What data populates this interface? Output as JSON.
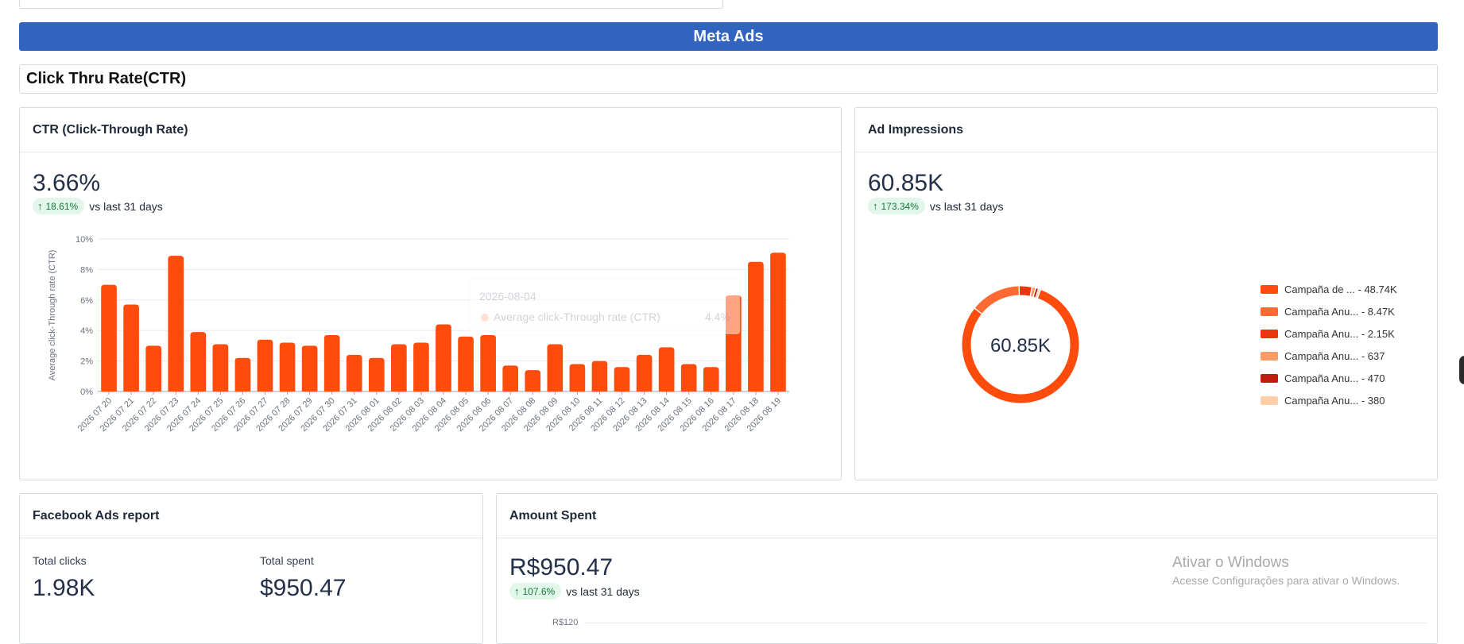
{
  "banner": {
    "title": "Meta Ads"
  },
  "section": {
    "title": "Click Thru Rate(CTR)"
  },
  "ctr_card": {
    "title": "CTR (Click-Through Rate)",
    "value": "3.66%",
    "change": "18.61%",
    "compare": "vs last 31 days",
    "tooltip": {
      "date": "2026-08-04",
      "label": "Average click-Through rate (CTR)",
      "value": "4.4%"
    }
  },
  "impressions_card": {
    "title": "Ad Impressions",
    "value": "60.85K",
    "change": "173.34%",
    "compare": "vs last 31 days",
    "center_label": "60.85K",
    "legend": [
      {
        "label": "Campaña de ... - 48.74K",
        "color": "#ff4b0b"
      },
      {
        "label": "Campaña Anu... - 8.47K",
        "color": "#ff6a33"
      },
      {
        "label": "Campaña Anu... - 2.15K",
        "color": "#e8360f"
      },
      {
        "label": "Campaña Anu... - 637",
        "color": "#ff9a66"
      },
      {
        "label": "Campaña Anu... - 470",
        "color": "#c21a0e"
      },
      {
        "label": "Campaña Anu... - 380",
        "color": "#ffd0a8"
      }
    ]
  },
  "fb_card": {
    "title": "Facebook Ads report",
    "clicks_label": "Total clicks",
    "clicks_value": "1.98K",
    "spent_label": "Total spent",
    "spent_value": "$950.47"
  },
  "amount_card": {
    "title": "Amount Spent",
    "value": "R$950.47",
    "change": "107.6%",
    "compare": "vs last 31 days",
    "axis_top": "R$120"
  },
  "windows_watermark": {
    "line1": "Ativar o Windows",
    "line2": "Acesse Configurações para ativar o Windows."
  },
  "chart_data": [
    {
      "type": "bar",
      "ylabel": "Average click-Through rate (CTR)",
      "ylim": [
        0,
        10
      ],
      "yticks": [
        "0%",
        "2%",
        "4%",
        "6%",
        "8%",
        "10%"
      ],
      "grid": true,
      "color": "#ff4b0b",
      "categories": [
        "2026 07 20",
        "2026 07 21",
        "2026 07 22",
        "2026 07 23",
        "2026 07 24",
        "2026 07 25",
        "2026 07 26",
        "2026 07 27",
        "2026 07 28",
        "2026 07 29",
        "2026 07 30",
        "2026 07 31",
        "2026 08 01",
        "2026 08 02",
        "2026 08 03",
        "2026 08 04",
        "2026 08 05",
        "2026 08 06",
        "2026 08 07",
        "2026 08 08",
        "2026 08 09",
        "2026 08 10",
        "2026 08 11",
        "2026 08 12",
        "2026 08 13",
        "2026 08 14",
        "2026 08 15",
        "2026 08 16",
        "2026 08 17",
        "2026 08 18",
        "2026 08 19"
      ],
      "values": [
        7.0,
        5.7,
        3.0,
        8.9,
        3.9,
        3.1,
        2.2,
        3.4,
        3.2,
        3.0,
        3.7,
        2.4,
        2.2,
        3.1,
        3.2,
        4.4,
        3.6,
        3.7,
        1.7,
        1.4,
        3.1,
        1.8,
        2.0,
        1.6,
        2.4,
        2.9,
        1.8,
        1.6,
        6.3,
        8.5,
        9.1
      ]
    },
    {
      "type": "pie",
      "categories": [
        "Campaña de ...",
        "Campaña Anu...",
        "Campaña Anu...",
        "Campaña Anu...",
        "Campaña Anu...",
        "Campaña Anu..."
      ],
      "values": [
        48740,
        8470,
        2150,
        637,
        470,
        380
      ]
    }
  ]
}
